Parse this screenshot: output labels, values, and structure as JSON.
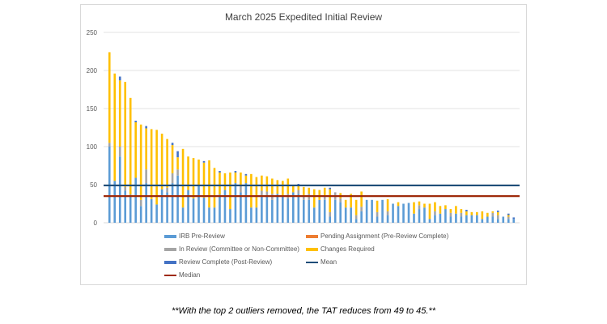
{
  "chart_data": {
    "type": "bar",
    "stacked": true,
    "title": "March 2025 Expedited Initial Review",
    "xlabel": "",
    "ylabel": "",
    "ylim": [
      0,
      250
    ],
    "yticks": [
      0,
      50,
      100,
      150,
      200,
      250
    ],
    "grid": true,
    "legend_position": "bottom",
    "series": [
      {
        "name": "IRB Pre-Review",
        "color": "#5b9bd5",
        "values": [
          100,
          55,
          87,
          42,
          37,
          59,
          22,
          52,
          31,
          24,
          44,
          40,
          52,
          62,
          20,
          43,
          32,
          48,
          33,
          20,
          20,
          37,
          43,
          18,
          52,
          40,
          52,
          20,
          20,
          36,
          36,
          30,
          38,
          36,
          32,
          40,
          38,
          30,
          30,
          20,
          30,
          30,
          8,
          30,
          27,
          20,
          20,
          5,
          15,
          30,
          30,
          8,
          30,
          10,
          25,
          22,
          25,
          26,
          12,
          18,
          20,
          5,
          10,
          12,
          18,
          8,
          12,
          8,
          10,
          10,
          10,
          5,
          8,
          8,
          5,
          8,
          5,
          5
        ]
      },
      {
        "name": "Pending Assignment (Pre-Review Complete)",
        "color": "#ed7d31",
        "values": [
          0,
          0,
          0,
          0,
          0,
          0,
          0,
          0,
          0,
          0,
          0,
          0,
          0,
          0,
          0,
          0,
          0,
          0,
          0,
          0,
          0,
          0,
          0,
          0,
          0,
          0,
          0,
          0,
          0,
          0,
          0,
          0,
          0,
          0,
          0,
          0,
          0,
          0,
          0,
          0,
          0,
          0,
          0,
          0,
          0,
          0,
          0,
          0,
          0,
          0,
          0,
          0,
          0,
          0,
          0,
          0,
          0,
          0,
          0,
          0,
          0,
          0,
          0,
          0,
          0,
          0,
          0,
          0,
          0,
          0,
          0,
          0,
          0,
          0,
          0,
          0,
          0,
          0
        ]
      },
      {
        "name": "In Review (Committee or Non-Committee)",
        "color": "#a5a5a5",
        "values": [
          5,
          0,
          13,
          5,
          0,
          0,
          8,
          18,
          0,
          0,
          0,
          6,
          13,
          8,
          0,
          0,
          0,
          0,
          0,
          0,
          0,
          0,
          0,
          0,
          0,
          8,
          0,
          0,
          0,
          6,
          5,
          8,
          0,
          0,
          6,
          0,
          5,
          5,
          8,
          0,
          0,
          6,
          6,
          10,
          5,
          0,
          0,
          5,
          6,
          0,
          0,
          6,
          0,
          5,
          0,
          0,
          0,
          0,
          0,
          5,
          0,
          0,
          5,
          0,
          0,
          5,
          0,
          5,
          0,
          0,
          0,
          0,
          0,
          5,
          5,
          0,
          3,
          0
        ]
      },
      {
        "name": "Changes Required",
        "color": "#ffc000",
        "values": [
          119,
          141,
          87,
          138,
          127,
          73,
          99,
          54,
          92,
          98,
          73,
          64,
          37,
          16,
          77,
          44,
          53,
          35,
          46,
          62,
          52,
          29,
          22,
          48,
          14,
          18,
          10,
          44,
          40,
          20,
          20,
          20,
          18,
          19,
          20,
          8,
          6,
          12,
          8,
          24,
          13,
          10,
          30,
          0,
          7,
          10,
          18,
          20,
          20,
          0,
          0,
          15,
          0,
          16,
          0,
          5,
          0,
          0,
          15,
          5,
          5,
          20,
          12,
          10,
          5,
          5,
          10,
          5,
          5,
          4,
          4,
          10,
          5,
          2,
          4,
          0,
          2,
          0
        ]
      },
      {
        "name": "Review Complete (Post-Review)",
        "color": "#4472c4",
        "values": [
          0,
          0,
          5,
          0,
          0,
          2,
          0,
          3,
          0,
          0,
          0,
          0,
          3,
          8,
          0,
          0,
          0,
          0,
          2,
          0,
          0,
          2,
          0,
          0,
          2,
          0,
          2,
          0,
          0,
          0,
          0,
          0,
          0,
          0,
          0,
          0,
          2,
          0,
          0,
          0,
          0,
          0,
          2,
          0,
          0,
          0,
          0,
          0,
          0,
          0,
          0,
          0,
          0,
          0,
          0,
          0,
          0,
          0,
          0,
          0,
          0,
          0,
          0,
          0,
          0,
          0,
          0,
          0,
          2,
          0,
          0,
          0,
          0,
          0,
          2,
          0,
          2,
          2
        ]
      }
    ],
    "reference_lines": [
      {
        "name": "Mean",
        "color": "#1f4e79",
        "value": 49
      },
      {
        "name": "Median",
        "color": "#9e2a0b",
        "value": 35
      }
    ]
  },
  "legend": {
    "irb_pre_review": "IRB Pre-Review",
    "pending_assignment": "Pending Assignment (Pre-Review Complete)",
    "in_review": "In Review (Committee or Non-Committee)",
    "changes_required": "Changes Required",
    "review_complete": "Review Complete (Post-Review)",
    "mean": "Mean",
    "median": "Median"
  },
  "footnote": "**With the top 2 outliers removed, the TAT reduces from 49 to 45.**"
}
